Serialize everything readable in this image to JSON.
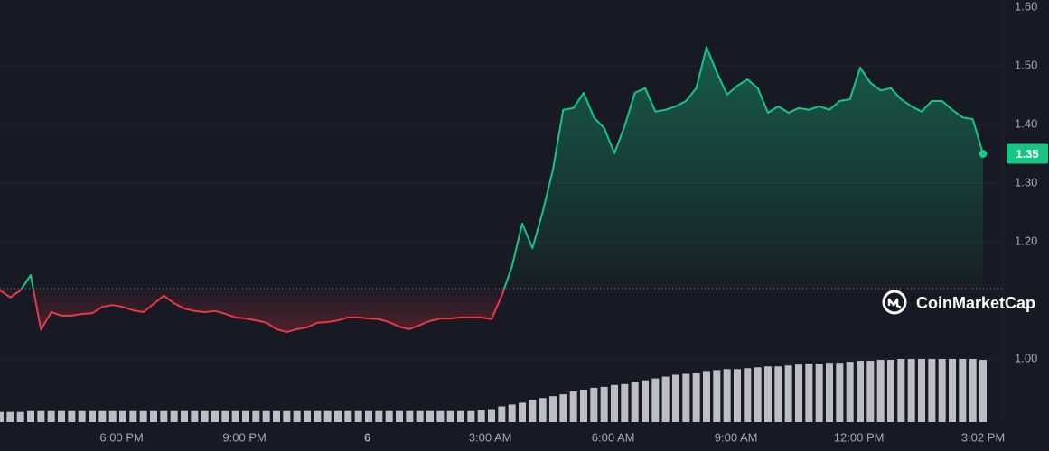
{
  "chart_data": {
    "type": "line",
    "watermark": "CoinMarketCap",
    "up_color": "#16c784",
    "down_color": "#ea3943",
    "baseline": 1.12,
    "grid": true,
    "xlim": [
      15.03,
      39.03
    ],
    "ylim": [
      0.9,
      1.6
    ],
    "xticks": [
      {
        "value": 18,
        "label": "6:00 PM"
      },
      {
        "value": 21,
        "label": "9:00 PM"
      },
      {
        "value": 24,
        "label": "6"
      },
      {
        "value": 27,
        "label": "3:00 AM"
      },
      {
        "value": 30,
        "label": "6:00 AM"
      },
      {
        "value": 33,
        "label": "9:00 AM"
      },
      {
        "value": 36,
        "label": "12:00 PM"
      },
      {
        "value": 39.03,
        "label": "3:02 PM"
      }
    ],
    "yticks": [
      {
        "value": 1.6,
        "label": "1.60"
      },
      {
        "value": 1.5,
        "label": "1.50"
      },
      {
        "value": 1.4,
        "label": "1.40"
      },
      {
        "value": 1.3,
        "label": "1.30"
      },
      {
        "value": 1.2,
        "label": "1.20"
      },
      {
        "value": 1,
        "label": "1.00"
      }
    ],
    "x": [
      15.03,
      15.28,
      15.53,
      15.78,
      16.03,
      16.28,
      16.53,
      16.78,
      17.03,
      17.28,
      17.53,
      17.78,
      18.03,
      18.28,
      18.53,
      18.78,
      19.03,
      19.28,
      19.53,
      19.78,
      20.03,
      20.28,
      20.53,
      20.78,
      21.03,
      21.28,
      21.53,
      21.78,
      22.03,
      22.28,
      22.53,
      22.78,
      23.03,
      23.28,
      23.53,
      23.78,
      24.03,
      24.28,
      24.53,
      24.78,
      25.03,
      25.28,
      25.53,
      25.78,
      26.03,
      26.28,
      26.53,
      26.78,
      27.03,
      27.28,
      27.53,
      27.78,
      28.03,
      28.28,
      28.53,
      28.78,
      29.03,
      29.28,
      29.53,
      29.78,
      30.03,
      30.28,
      30.53,
      30.78,
      31.03,
      31.28,
      31.53,
      31.78,
      32.03,
      32.28,
      32.53,
      32.78,
      33.03,
      33.28,
      33.53,
      33.78,
      34.03,
      34.28,
      34.53,
      34.78,
      35.03,
      35.28,
      35.53,
      35.78,
      36.03,
      36.28,
      36.53,
      36.78,
      37.03,
      37.28,
      37.53,
      37.78,
      38.03,
      38.28,
      38.53,
      38.78,
      39.03
    ],
    "values": [
      1.117,
      1.105,
      1.117,
      1.143,
      1.05,
      1.08,
      1.074,
      1.074,
      1.077,
      1.078,
      1.089,
      1.092,
      1.089,
      1.083,
      1.08,
      1.094,
      1.108,
      1.095,
      1.086,
      1.082,
      1.08,
      1.082,
      1.077,
      1.071,
      1.069,
      1.066,
      1.062,
      1.051,
      1.046,
      1.051,
      1.054,
      1.062,
      1.063,
      1.066,
      1.071,
      1.071,
      1.069,
      1.068,
      1.063,
      1.055,
      1.051,
      1.058,
      1.065,
      1.069,
      1.069,
      1.071,
      1.071,
      1.071,
      1.068,
      1.108,
      1.158,
      1.231,
      1.189,
      1.251,
      1.323,
      1.425,
      1.428,
      1.454,
      1.412,
      1.394,
      1.351,
      1.397,
      1.454,
      1.462,
      1.422,
      1.425,
      1.431,
      1.44,
      1.462,
      1.532,
      1.489,
      1.451,
      1.466,
      1.477,
      1.462,
      1.42,
      1.431,
      1.42,
      1.428,
      1.425,
      1.431,
      1.425,
      1.44,
      1.443,
      1.497,
      1.471,
      1.458,
      1.462,
      1.443,
      1.431,
      1.422,
      1.44,
      1.44,
      1.425,
      1.412,
      1.409,
      1.35
    ],
    "volume": [
      11,
      11,
      11,
      12,
      12,
      12,
      12,
      12,
      12,
      12,
      12,
      12,
      12,
      12,
      12,
      12,
      12,
      12,
      12,
      12,
      12,
      12,
      12,
      12,
      12,
      12,
      12,
      12,
      12,
      12,
      12,
      12,
      12,
      12,
      12,
      12,
      12,
      12,
      12,
      12,
      12,
      12,
      12,
      12,
      12,
      12,
      12,
      13,
      14,
      17,
      19,
      21,
      24,
      26,
      28,
      30,
      33,
      35,
      37,
      38,
      40,
      41,
      43,
      45,
      47,
      49,
      51,
      52,
      53,
      55,
      56,
      57,
      57,
      58,
      59,
      60,
      60,
      61,
      62,
      63,
      63,
      64,
      64,
      65,
      66,
      66,
      67,
      67,
      68,
      68,
      68,
      68,
      68,
      68,
      68,
      68,
      67
    ]
  }
}
